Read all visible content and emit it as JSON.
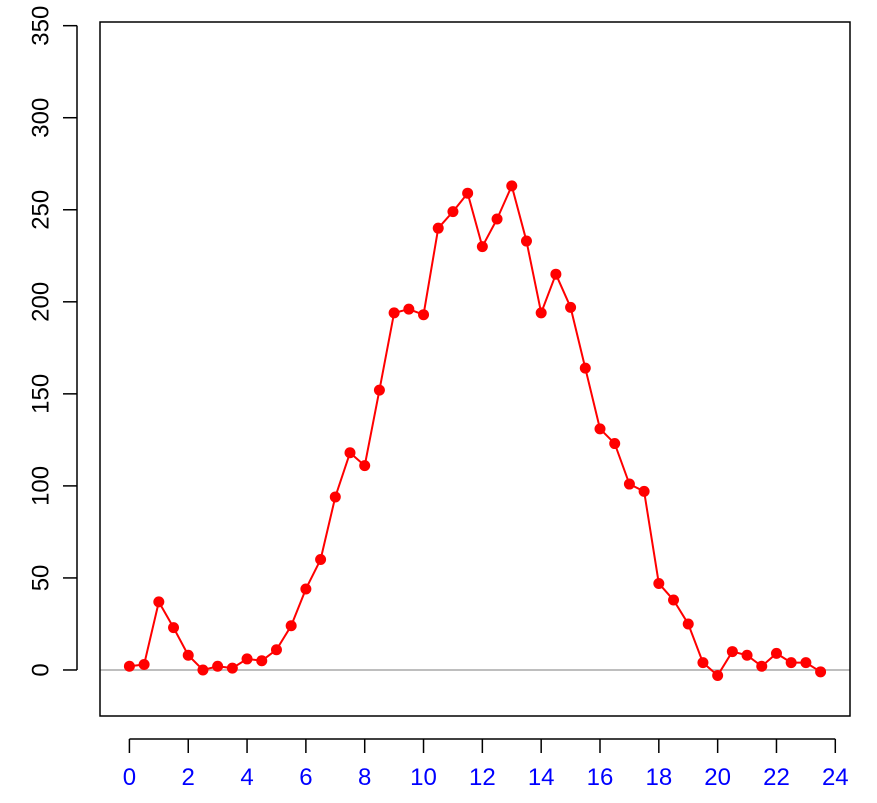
{
  "chart_data": {
    "type": "line",
    "title": "",
    "xlabel": "",
    "ylabel": "",
    "xlim": [
      -1,
      24.5
    ],
    "ylim": [
      -25,
      352
    ],
    "x_ticks": [
      0,
      2,
      4,
      6,
      8,
      10,
      12,
      14,
      16,
      18,
      20,
      22,
      24
    ],
    "y_ticks": [
      0,
      50,
      100,
      150,
      200,
      250,
      300,
      350
    ],
    "x_tick_labels": [
      "0",
      "2",
      "4",
      "6",
      "8",
      "10",
      "12",
      "14",
      "16",
      "18",
      "20",
      "22",
      "24"
    ],
    "y_tick_labels": [
      "0",
      "50",
      "100",
      "150",
      "200",
      "250",
      "300",
      "350"
    ],
    "reference_line_y": 0,
    "legend": "none",
    "grid": false,
    "colors": {
      "series": "#ff0000",
      "x_tick_labels": "#0000ff",
      "y_tick_labels": "#000000",
      "reference_line": "#bebebe",
      "axes": "#000000"
    },
    "series": [
      {
        "x": [
          0,
          0.5,
          1,
          1.5,
          2,
          2.5,
          3,
          3.5,
          4,
          4.5,
          5,
          5.5,
          6,
          6.5,
          7,
          7.5,
          8,
          8.5,
          9,
          9.5,
          10,
          10.5,
          11,
          11.5,
          12,
          12.5,
          13,
          13.5,
          14,
          14.5,
          15,
          15.5,
          16,
          16.5,
          17,
          17.5,
          18,
          18.5,
          19,
          19.5,
          20,
          20.5,
          21,
          21.5,
          22,
          22.5,
          23,
          23.5
        ],
        "values": [
          2,
          3,
          37,
          23,
          8,
          0,
          2,
          1,
          6,
          5,
          11,
          24,
          44,
          60,
          94,
          118,
          111,
          152,
          194,
          196,
          193,
          240,
          249,
          259,
          230,
          245,
          263,
          233,
          194,
          215,
          197,
          164,
          131,
          123,
          101,
          97,
          47,
          38,
          25,
          4,
          -3,
          10,
          8,
          2,
          9,
          4,
          4,
          -1
        ]
      }
    ]
  }
}
